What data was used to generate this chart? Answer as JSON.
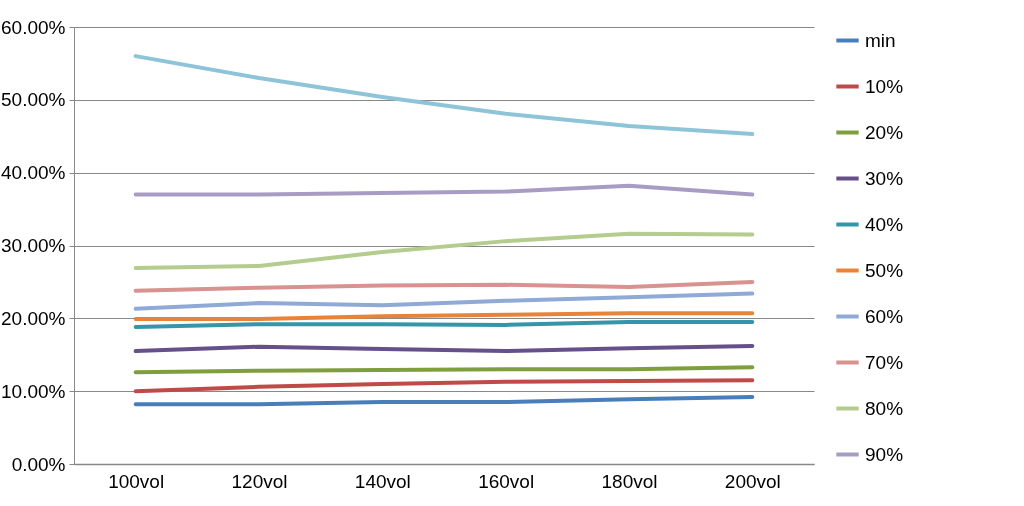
{
  "chart_data": {
    "type": "line",
    "categories": [
      "100vol",
      "120vol",
      "140vol",
      "160vol",
      "180vol",
      "200vol"
    ],
    "ylim": [
      0,
      60
    ],
    "yticks": [
      {
        "value": 0,
        "label": "0.00%"
      },
      {
        "value": 10,
        "label": "10.00%"
      },
      {
        "value": 20,
        "label": "20.00%"
      },
      {
        "value": 30,
        "label": "30.00%"
      },
      {
        "value": 40,
        "label": "40.00%"
      },
      {
        "value": 50,
        "label": "50.00%"
      },
      {
        "value": 60,
        "label": "60.00%"
      }
    ],
    "grid": "y",
    "legend": "right",
    "marker": "none",
    "line_style": "solid",
    "series": [
      {
        "name": "min",
        "color": "#4a7ebb",
        "values": [
          8.2,
          8.2,
          8.5,
          8.5,
          8.9,
          9.2
        ]
      },
      {
        "name": "10%",
        "color": "#be4b48",
        "values": [
          10.0,
          10.6,
          11.0,
          11.3,
          11.4,
          11.5
        ]
      },
      {
        "name": "20%",
        "color": "#7f9f3e",
        "values": [
          12.6,
          12.8,
          12.9,
          13.0,
          13.0,
          13.3
        ]
      },
      {
        "name": "30%",
        "color": "#65508a",
        "values": [
          15.5,
          16.1,
          15.8,
          15.5,
          15.9,
          16.2
        ]
      },
      {
        "name": "40%",
        "color": "#3596a8",
        "values": [
          18.8,
          19.2,
          19.2,
          19.1,
          19.5,
          19.5
        ]
      },
      {
        "name": "50%",
        "color": "#e8843a",
        "values": [
          19.9,
          19.9,
          20.3,
          20.5,
          20.7,
          20.7
        ]
      },
      {
        "name": "60%",
        "color": "#8faad6",
        "values": [
          21.3,
          22.1,
          21.8,
          22.4,
          22.9,
          23.4
        ]
      },
      {
        "name": "70%",
        "color": "#d89290",
        "values": [
          23.8,
          24.2,
          24.5,
          24.6,
          24.3,
          25.0
        ]
      },
      {
        "name": "80%",
        "color": "#b4cd8e",
        "values": [
          26.9,
          27.2,
          29.1,
          30.6,
          31.6,
          31.5
        ]
      },
      {
        "name": "90%",
        "color": "#a89cc4",
        "values": [
          37.0,
          37.0,
          37.2,
          37.4,
          38.2,
          37.0
        ]
      },
      {
        "color": "#8ec4d8",
        "values": [
          56.0,
          53.0,
          50.4,
          48.1,
          46.4,
          45.3
        ]
      }
    ]
  }
}
